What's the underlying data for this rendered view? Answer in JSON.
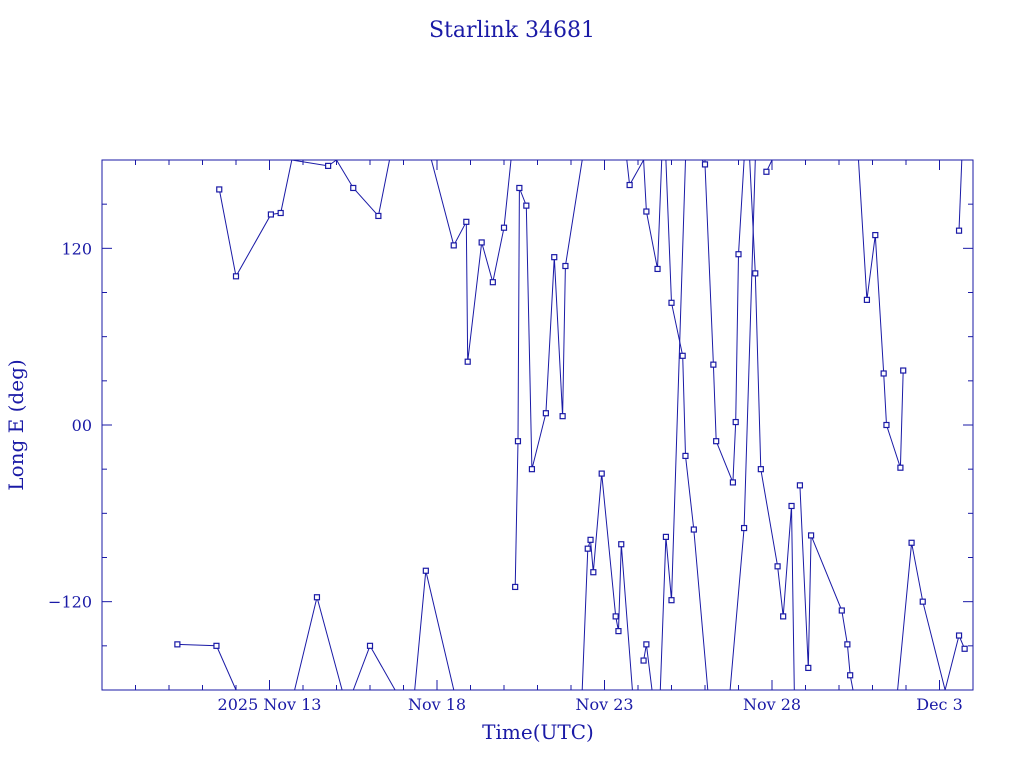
{
  "chart_data": {
    "type": "line",
    "title": "Starlink 34681",
    "xlabel": "Time(UTC)",
    "ylabel": "Long E (deg)",
    "xlim": [
      "2025-11-08",
      "2025-12-04"
    ],
    "ylim": [
      -180,
      180
    ],
    "x_ticks": [
      {
        "date": "2025-11-13",
        "label": "2025 Nov 13"
      },
      {
        "date": "2025-11-18",
        "label": "Nov 18"
      },
      {
        "date": "2025-11-23",
        "label": "Nov 23"
      },
      {
        "date": "2025-11-28",
        "label": "Nov 28"
      },
      {
        "date": "2025-12-03",
        "label": "Dec  3"
      }
    ],
    "y_ticks": [
      {
        "value": -120,
        "label": "−120"
      },
      {
        "value": 0,
        "label": "00"
      },
      {
        "value": 120,
        "label": "120"
      }
    ],
    "grid": false,
    "line_color": "#1a1aa6",
    "series": [
      {
        "points": [
          [
            "2025-11-11 12:00",
            160
          ],
          [
            "2025-11-12 00:00",
            101
          ],
          [
            "2025-11-13 01:00",
            143
          ],
          [
            "2025-11-13 08:00",
            144
          ],
          [
            "2025-11-13 16:00",
            180
          ],
          [
            "2025-11-14 18:00",
            176
          ],
          [
            "2025-11-15 00:00",
            180
          ],
          [
            "2025-11-15 12:00",
            161
          ],
          [
            "2025-11-16 06:00",
            142
          ],
          [
            "2025-11-16 14:00",
            180
          ],
          [
            "2025-11-17 20:00",
            180
          ],
          [
            "2025-11-18 12:00",
            122
          ],
          [
            "2025-11-18 21:00",
            138
          ],
          [
            "2025-11-18 22:00",
            43
          ],
          [
            "2025-11-19 08:00",
            124
          ],
          [
            "2025-11-19 16:00",
            97
          ],
          [
            "2025-11-20 00:00",
            134
          ],
          [
            "2025-11-20 05:00",
            180
          ]
        ]
      },
      {
        "points": [
          [
            "2025-11-20 08:00",
            -110
          ],
          [
            "2025-11-20 10:00",
            -11
          ],
          [
            "2025-11-20 11:00",
            161
          ],
          [
            "2025-11-20 16:00",
            149
          ],
          [
            "2025-11-20 20:00",
            -30
          ],
          [
            "2025-11-21 06:00",
            8
          ],
          [
            "2025-11-21 12:00",
            114
          ],
          [
            "2025-11-21 18:00",
            6
          ],
          [
            "2025-11-21 20:00",
            108
          ],
          [
            "2025-11-22 08:00",
            180
          ]
        ]
      },
      {
        "points": [
          [
            "2025-11-22 08:00",
            -180
          ],
          [
            "2025-11-22 12:00",
            -84
          ],
          [
            "2025-11-22 14:00",
            -78
          ],
          [
            "2025-11-22 16:00",
            -100
          ],
          [
            "2025-11-22 22:00",
            -33
          ],
          [
            "2025-11-23 08:00",
            -130
          ],
          [
            "2025-11-23 10:00",
            -140
          ],
          [
            "2025-11-23 12:00",
            -81
          ],
          [
            "2025-11-23 20:00",
            -180
          ]
        ]
      },
      {
        "points": [
          [
            "2025-11-23 16:00",
            180
          ],
          [
            "2025-11-23 18:00",
            163
          ],
          [
            "2025-11-24 04:00",
            180
          ],
          [
            "2025-11-24 06:00",
            145
          ],
          [
            "2025-11-24 14:00",
            106
          ],
          [
            "2025-11-24 17:00",
            180
          ]
        ]
      },
      {
        "points": [
          [
            "2025-11-24 04:00",
            -160
          ],
          [
            "2025-11-24 06:00",
            -149
          ],
          [
            "2025-11-24 10:00",
            -180
          ]
        ]
      },
      {
        "points": [
          [
            "2025-11-24 16:00",
            -180
          ],
          [
            "2025-11-24 20:00",
            -76
          ],
          [
            "2025-11-25 00:00",
            -119
          ],
          [
            "2025-11-25 10:00",
            180
          ]
        ]
      },
      {
        "points": [
          [
            "2025-11-24 20:00",
            180
          ],
          [
            "2025-11-25 00:00",
            83
          ],
          [
            "2025-11-25 08:00",
            47
          ],
          [
            "2025-11-25 10:00",
            -21
          ],
          [
            "2025-11-25 16:00",
            -71
          ],
          [
            "2025-11-26 02:00",
            -180
          ]
        ]
      },
      {
        "points": [
          [
            "2025-11-25 22:00",
            180
          ],
          [
            "2025-11-26 00:00",
            177
          ],
          [
            "2025-11-26 06:00",
            41
          ],
          [
            "2025-11-26 08:00",
            -11
          ],
          [
            "2025-11-26 20:00",
            -39
          ],
          [
            "2025-11-26 22:00",
            2
          ],
          [
            "2025-11-27 00:00",
            116
          ],
          [
            "2025-11-27 04:00",
            180
          ]
        ]
      },
      {
        "points": [
          [
            "2025-11-26 18:00",
            -180
          ],
          [
            "2025-11-27 04:00",
            -70
          ],
          [
            "2025-11-27 12:00",
            180
          ]
        ]
      },
      {
        "points": [
          [
            "2025-11-27 08:00",
            180
          ],
          [
            "2025-11-27 12:00",
            103
          ],
          [
            "2025-11-27 16:00",
            -30
          ],
          [
            "2025-11-28 04:00",
            -96
          ],
          [
            "2025-11-28 08:00",
            -130
          ],
          [
            "2025-11-28 14:00",
            -55
          ],
          [
            "2025-11-28 16:00",
            -180
          ]
        ]
      },
      {
        "points": [
          [
            "2025-11-27 20:00",
            172
          ],
          [
            "2025-11-28 00:00",
            180
          ]
        ]
      },
      {
        "points": [
          [
            "2025-11-28 20:00",
            -41
          ],
          [
            "2025-11-29 02:00",
            -165
          ],
          [
            "2025-11-29 04:00",
            -75
          ],
          [
            "2025-11-30 02:00",
            -126
          ],
          [
            "2025-11-30 06:00",
            -149
          ],
          [
            "2025-11-30 08:00",
            -170
          ],
          [
            "2025-11-30 10:00",
            -180
          ]
        ]
      },
      {
        "points": [
          [
            "2025-11-30 14:00",
            180
          ],
          [
            "2025-11-30 20:00",
            85
          ],
          [
            "2025-12-01 02:00",
            129
          ],
          [
            "2025-12-01 08:00",
            35
          ],
          [
            "2025-12-01 10:00",
            0
          ],
          [
            "2025-12-01 20:00",
            -29
          ],
          [
            "2025-12-01 22:00",
            37
          ]
        ]
      },
      {
        "points": [
          [
            "2025-12-01 18:00",
            -180
          ],
          [
            "2025-12-02 04:00",
            -80
          ],
          [
            "2025-12-02 12:00",
            -120
          ],
          [
            "2025-12-03 04:00",
            -180
          ],
          [
            "2025-12-03 14:00",
            -143
          ],
          [
            "2025-12-03 18:00",
            -152
          ]
        ]
      },
      {
        "points": [
          [
            "2025-12-03 14:00",
            132
          ],
          [
            "2025-12-03 16:00",
            180
          ]
        ]
      },
      {
        "points": [
          [
            "2025-11-10 06:00",
            -149
          ],
          [
            "2025-11-11 10:00",
            -150
          ],
          [
            "2025-11-12 00:00",
            -180
          ]
        ]
      },
      {
        "points": [
          [
            "2025-11-13 18:00",
            -180
          ],
          [
            "2025-11-14 10:00",
            -117
          ],
          [
            "2025-11-15 04:00",
            -180
          ]
        ]
      },
      {
        "points": [
          [
            "2025-11-15 12:00",
            -180
          ],
          [
            "2025-11-16 00:00",
            -150
          ],
          [
            "2025-11-16 18:00",
            -180
          ]
        ]
      },
      {
        "points": [
          [
            "2025-11-17 08:00",
            -180
          ],
          [
            "2025-11-17 16:00",
            -99
          ],
          [
            "2025-11-18 12:00",
            -180
          ]
        ]
      }
    ]
  }
}
